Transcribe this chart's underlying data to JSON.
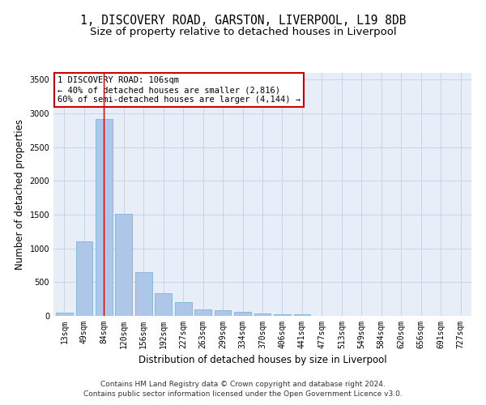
{
  "title_line1": "1, DISCOVERY ROAD, GARSTON, LIVERPOOL, L19 8DB",
  "title_line2": "Size of property relative to detached houses in Liverpool",
  "xlabel": "Distribution of detached houses by size in Liverpool",
  "ylabel": "Number of detached properties",
  "categories": [
    "13sqm",
    "49sqm",
    "84sqm",
    "120sqm",
    "156sqm",
    "192sqm",
    "227sqm",
    "263sqm",
    "299sqm",
    "334sqm",
    "370sqm",
    "406sqm",
    "441sqm",
    "477sqm",
    "513sqm",
    "549sqm",
    "584sqm",
    "620sqm",
    "656sqm",
    "691sqm",
    "727sqm"
  ],
  "values": [
    45,
    1100,
    2920,
    1510,
    645,
    340,
    205,
    100,
    85,
    60,
    35,
    30,
    20,
    5,
    5,
    3,
    3,
    0,
    0,
    0,
    0
  ],
  "bar_color": "#aec6e8",
  "bar_edge_color": "#6baed6",
  "property_bin_index": 2,
  "red_line_color": "#cc0000",
  "annotation_text": "1 DISCOVERY ROAD: 106sqm\n← 40% of detached houses are smaller (2,816)\n60% of semi-detached houses are larger (4,144) →",
  "annotation_box_color": "#ffffff",
  "annotation_box_edge_color": "#cc0000",
  "ylim": [
    0,
    3600
  ],
  "yticks": [
    0,
    500,
    1000,
    1500,
    2000,
    2500,
    3000,
    3500
  ],
  "grid_color": "#c8d4e8",
  "background_color": "#e8eef8",
  "footer_line1": "Contains HM Land Registry data © Crown copyright and database right 2024.",
  "footer_line2": "Contains public sector information licensed under the Open Government Licence v3.0.",
  "title_fontsize": 10.5,
  "subtitle_fontsize": 9.5,
  "axis_label_fontsize": 8.5,
  "tick_fontsize": 7,
  "annotation_fontsize": 7.5,
  "footer_fontsize": 6.5
}
